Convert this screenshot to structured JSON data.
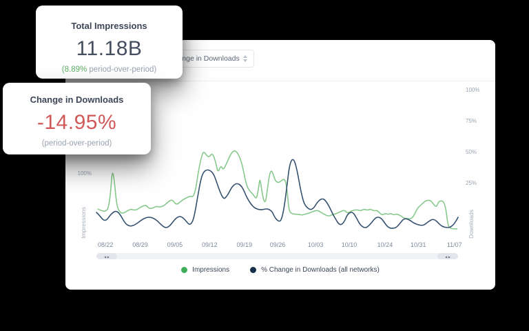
{
  "stat_cards": {
    "impressions": {
      "title": "Total Impressions",
      "value": "11.18B",
      "delta_pct": "(8.89%",
      "delta_suffix": " period-over-period)"
    },
    "downloads": {
      "title": "Change in Downloads",
      "value": "-14.95%",
      "sub": "(period-over-period)",
      "value_color": "#d05858"
    }
  },
  "panel": {
    "dropdown_value": "Change in Downloads",
    "scroll_arrows": "◂ ▸"
  },
  "chart_data": {
    "type": "line",
    "title": "",
    "grid": false,
    "x_axis": {
      "labels": [
        "08/22",
        "08/29",
        "09/05",
        "09/12",
        "09/19",
        "09/26",
        "10/03",
        "10/10",
        "10/24",
        "10/31",
        "11/07"
      ],
      "positions_pct": [
        2.5,
        12.1,
        21.7,
        31.3,
        40.9,
        50.1,
        60.6,
        69.9,
        79.8,
        89.0,
        99.0
      ]
    },
    "left_axis": {
      "title": "Impressions",
      "ticks": [
        {
          "label": "100%",
          "value": 100
        }
      ]
    },
    "right_axis": {
      "title": "Downloads",
      "ticks": [
        {
          "label": "100%",
          "value": 100
        },
        {
          "label": "75%",
          "value": 75
        },
        {
          "label": "50%",
          "value": 50
        },
        {
          "label": "25%",
          "value": 25
        }
      ]
    },
    "legend": [
      {
        "label": "Impressions",
        "color": "#3fae5a"
      },
      {
        "label": "% Change in Downloads (all networks)",
        "color": "#16304b"
      }
    ],
    "series": [
      {
        "name": "Impressions",
        "axis": "left",
        "unit": "%",
        "color": "#86c98b",
        "points": [
          [
            0.4,
            40
          ],
          [
            1.5,
            37
          ],
          [
            2.5,
            36
          ],
          [
            3.3,
            41
          ],
          [
            3.9,
            66
          ],
          [
            4.4,
            107
          ],
          [
            5.0,
            85
          ],
          [
            5.6,
            46
          ],
          [
            6.5,
            34
          ],
          [
            7.5,
            33
          ],
          [
            8.5,
            37
          ],
          [
            9.5,
            40
          ],
          [
            10.5,
            38
          ],
          [
            11.5,
            40
          ],
          [
            12.4,
            44
          ],
          [
            13.7,
            47
          ],
          [
            14.5,
            41
          ],
          [
            15.5,
            41
          ],
          [
            16.5,
            45
          ],
          [
            17.6,
            43
          ],
          [
            18.8,
            46
          ],
          [
            20,
            53
          ],
          [
            21,
            56
          ],
          [
            22,
            47
          ],
          [
            23,
            51
          ],
          [
            24,
            56
          ],
          [
            25,
            59
          ],
          [
            26,
            62
          ],
          [
            26.7,
            60
          ],
          [
            27.4,
            71
          ],
          [
            28.1,
            99
          ],
          [
            28.9,
            124
          ],
          [
            29.6,
            137
          ],
          [
            30.4,
            130
          ],
          [
            31.1,
            126
          ],
          [
            32.1,
            134
          ],
          [
            33,
            118
          ],
          [
            33.6,
            100
          ],
          [
            34.4,
            113
          ],
          [
            35.1,
            105
          ],
          [
            35.9,
            115
          ],
          [
            36.7,
            126
          ],
          [
            37.4,
            134
          ],
          [
            38.2,
            138
          ],
          [
            39,
            134
          ],
          [
            39.8,
            124
          ],
          [
            40.5,
            109
          ],
          [
            41.2,
            87
          ],
          [
            41.8,
            76
          ],
          [
            42.4,
            70
          ],
          [
            43.1,
            66
          ],
          [
            43.7,
            61
          ],
          [
            44.3,
            57
          ],
          [
            44.9,
            77
          ],
          [
            45.2,
            92
          ],
          [
            45.6,
            76
          ],
          [
            46.2,
            54
          ],
          [
            46.8,
            51
          ],
          [
            47.3,
            74
          ],
          [
            47.9,
            100
          ],
          [
            48.5,
            105
          ],
          [
            49.1,
            93
          ],
          [
            49.6,
            86
          ],
          [
            50.4,
            84
          ],
          [
            51.1,
            87
          ],
          [
            51.9,
            91
          ],
          [
            52.5,
            82
          ],
          [
            52.9,
            61
          ],
          [
            53.2,
            40
          ],
          [
            53.8,
            32
          ],
          [
            56,
            31
          ],
          [
            57,
            30
          ],
          [
            58,
            32
          ],
          [
            59.1,
            34
          ],
          [
            60.3,
            37
          ],
          [
            61.2,
            38
          ],
          [
            62.2,
            34
          ],
          [
            63.1,
            31
          ],
          [
            64.1,
            28
          ],
          [
            65,
            30
          ],
          [
            66,
            32
          ],
          [
            67,
            34
          ],
          [
            67.9,
            37
          ],
          [
            68.7,
            38
          ],
          [
            69.4,
            33
          ],
          [
            70.2,
            36
          ],
          [
            71.1,
            38
          ],
          [
            72.1,
            39
          ],
          [
            73,
            37
          ],
          [
            74,
            40
          ],
          [
            75,
            38
          ],
          [
            75.7,
            40
          ],
          [
            76.7,
            37
          ],
          [
            77.6,
            38
          ],
          [
            78.4,
            33
          ],
          [
            79.1,
            30
          ],
          [
            79.9,
            33
          ],
          [
            80.7,
            31
          ],
          [
            81.4,
            33
          ],
          [
            82.2,
            30
          ],
          [
            83.1,
            32
          ],
          [
            84.1,
            29
          ],
          [
            85,
            25
          ],
          [
            86,
            24
          ],
          [
            87,
            24
          ],
          [
            87.7,
            28
          ],
          [
            88.7,
            41
          ],
          [
            89.6,
            46
          ],
          [
            90.6,
            52
          ],
          [
            91.5,
            55
          ],
          [
            92.5,
            54
          ],
          [
            93.2,
            48
          ],
          [
            94,
            43
          ],
          [
            94.6,
            52
          ],
          [
            95.3,
            54
          ],
          [
            96.1,
            52
          ],
          [
            96.7,
            38
          ],
          [
            97.2,
            13
          ],
          [
            97.8,
            8
          ],
          [
            98.8,
            7
          ],
          [
            99.7,
            7
          ]
        ]
      },
      {
        "name": "% Change in Downloads (all networks)",
        "axis": "right",
        "unit": "%",
        "color": "#33506f",
        "points": [
          [
            0,
            1.1
          ],
          [
            0.8,
            -1.1
          ],
          [
            1.5,
            -3.9
          ],
          [
            2.3,
            -5.6
          ],
          [
            3,
            -4.4
          ],
          [
            3.8,
            -1.1
          ],
          [
            4.6,
            1.1
          ],
          [
            5.3,
            2.2
          ],
          [
            6.1,
            1.1
          ],
          [
            6.9,
            -2.2
          ],
          [
            7.6,
            -6.1
          ],
          [
            8.4,
            -8.9
          ],
          [
            9.3,
            -10
          ],
          [
            10.3,
            -9.4
          ],
          [
            11.2,
            -7.8
          ],
          [
            12.2,
            -5.6
          ],
          [
            13.1,
            -3.9
          ],
          [
            14.1,
            -2.8
          ],
          [
            15,
            -2.8
          ],
          [
            16,
            -3.9
          ],
          [
            17,
            -6.1
          ],
          [
            17.9,
            -8.9
          ],
          [
            18.9,
            -11.1
          ],
          [
            19.6,
            -11.1
          ],
          [
            20.4,
            -9.4
          ],
          [
            21.1,
            -6.7
          ],
          [
            21.9,
            -3.9
          ],
          [
            22.7,
            -2.2
          ],
          [
            23.4,
            -2.2
          ],
          [
            24.2,
            -3.9
          ],
          [
            25,
            -6.7
          ],
          [
            25.7,
            -8.9
          ],
          [
            26.5,
            -7.2
          ],
          [
            27.2,
            0
          ],
          [
            28,
            13.9
          ],
          [
            28.8,
            26.7
          ],
          [
            29.5,
            33.3
          ],
          [
            30.5,
            35.6
          ],
          [
            31.4,
            35
          ],
          [
            32.4,
            32.2
          ],
          [
            33.3,
            25
          ],
          [
            34.3,
            16.7
          ],
          [
            35.2,
            11.7
          ],
          [
            36,
            13.9
          ],
          [
            36.8,
            17.8
          ],
          [
            37.5,
            21.7
          ],
          [
            38.3,
            23.9
          ],
          [
            39,
            24.4
          ],
          [
            39.8,
            23.3
          ],
          [
            40.6,
            20
          ],
          [
            41.3,
            15
          ],
          [
            42.1,
            10.6
          ],
          [
            42.9,
            7.2
          ],
          [
            43.6,
            5
          ],
          [
            44.4,
            3.9
          ],
          [
            45.1,
            3.3
          ],
          [
            45.9,
            3.3
          ],
          [
            46.7,
            3.9
          ],
          [
            47.4,
            3.9
          ],
          [
            48.2,
            2.8
          ],
          [
            48.8,
            0.6
          ],
          [
            49.3,
            -2.8
          ],
          [
            49.9,
            -5
          ],
          [
            50.5,
            -6.1
          ],
          [
            51,
            -5.6
          ],
          [
            51.6,
            0
          ],
          [
            52.2,
            11.1
          ],
          [
            52.8,
            25
          ],
          [
            53.3,
            37.2
          ],
          [
            53.9,
            43.3
          ],
          [
            54.5,
            43.9
          ],
          [
            55,
            40.6
          ],
          [
            55.6,
            33.3
          ],
          [
            56.2,
            23.3
          ],
          [
            56.8,
            15
          ],
          [
            57.3,
            9.4
          ],
          [
            57.9,
            6.1
          ],
          [
            58.7,
            3.9
          ],
          [
            59.4,
            3.3
          ],
          [
            60.2,
            5
          ],
          [
            61,
            8.9
          ],
          [
            61.7,
            11.1
          ],
          [
            62.5,
            12.2
          ],
          [
            63.2,
            11.1
          ],
          [
            64,
            7.8
          ],
          [
            64.8,
            3.3
          ],
          [
            65.5,
            -1.1
          ],
          [
            66.3,
            -5
          ],
          [
            67,
            -8.3
          ],
          [
            67.8,
            -8.9
          ],
          [
            68.6,
            -6.1
          ],
          [
            69.3,
            -1.1
          ],
          [
            70.1,
            1.1
          ],
          [
            70.9,
            1.1
          ],
          [
            71.6,
            -1.7
          ],
          [
            72.4,
            -6.1
          ],
          [
            73.1,
            -9.4
          ],
          [
            73.9,
            -11.1
          ],
          [
            74.7,
            -11.1
          ],
          [
            75.4,
            -9.4
          ],
          [
            76.2,
            -6.7
          ],
          [
            77,
            -3.9
          ],
          [
            77.5,
            -2.8
          ],
          [
            78.3,
            -2.8
          ],
          [
            79,
            -4.4
          ],
          [
            79.8,
            -7.8
          ],
          [
            80.6,
            -10.6
          ],
          [
            81.3,
            -11.7
          ],
          [
            82.1,
            -11.7
          ],
          [
            82.9,
            -11.1
          ],
          [
            83.6,
            -8.9
          ],
          [
            84.4,
            -6.1
          ],
          [
            84.9,
            -4.4
          ],
          [
            85.5,
            -3.9
          ],
          [
            86.1,
            -4.4
          ],
          [
            86.9,
            -5.6
          ],
          [
            87.6,
            -7.2
          ],
          [
            88.4,
            -8.3
          ],
          [
            89.1,
            -8.9
          ],
          [
            89.9,
            -9.4
          ],
          [
            90.7,
            -8.9
          ],
          [
            91.4,
            -7.2
          ],
          [
            92.2,
            -5.6
          ],
          [
            92.9,
            -4.4
          ],
          [
            93.7,
            -5
          ],
          [
            94.5,
            -7.2
          ],
          [
            95.2,
            -9.4
          ],
          [
            96,
            -10.6
          ],
          [
            96.8,
            -11.1
          ],
          [
            97.5,
            -11.1
          ],
          [
            98.3,
            -10
          ],
          [
            99,
            -7.8
          ],
          [
            99.6,
            -5
          ],
          [
            100,
            -2.8
          ]
        ]
      }
    ]
  }
}
